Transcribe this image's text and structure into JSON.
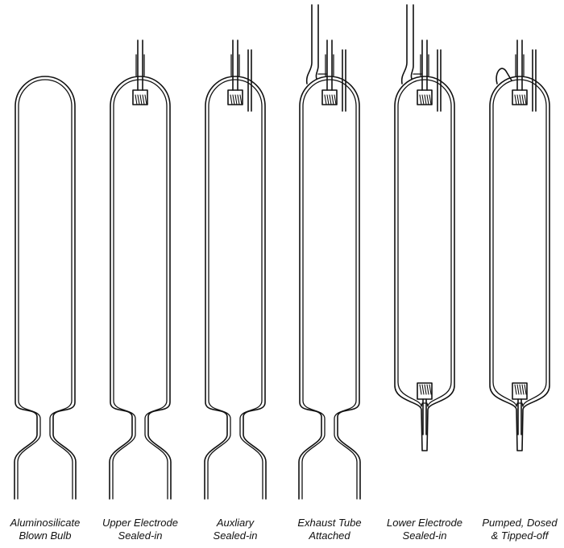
{
  "stages": [
    {
      "line1": "Aluminosilicate",
      "line2": "Blown Bulb"
    },
    {
      "line1": "Upper Electrode",
      "line2": "Sealed-in"
    },
    {
      "line1": "Auxliary",
      "line2": "Sealed-in"
    },
    {
      "line1": "Exhaust Tube",
      "line2": "Attached"
    },
    {
      "line1": "Lower Electrode",
      "line2": "Sealed-in"
    },
    {
      "line1": "Pumped, Dosed",
      "line2": "& Tipped-off"
    }
  ],
  "colors": {
    "stroke": "#111111",
    "background": "#ffffff"
  }
}
